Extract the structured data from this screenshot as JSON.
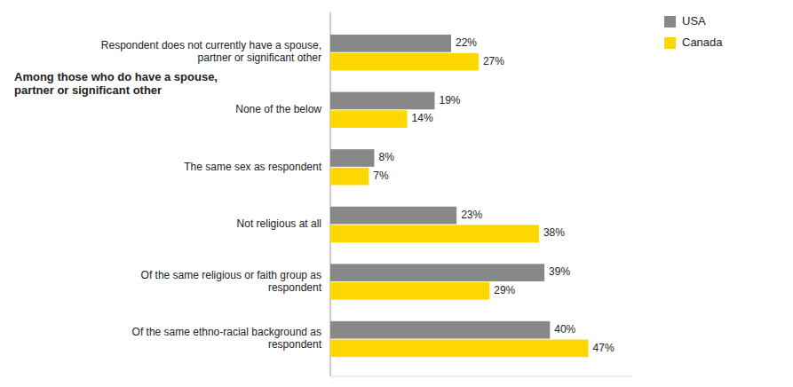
{
  "chart_data": {
    "type": "bar",
    "orientation": "horizontal",
    "categories": [
      "Of the same ethno-racial background as\nrespondent",
      "Of the same religious or faith group as\nrespondent",
      "Not religious at all",
      "The same sex as respondent",
      "None of the below",
      "Respondent does not currently have a spouse,\npartner or significant other"
    ],
    "series": [
      {
        "name": "USA",
        "color": "#888888",
        "values": [
          40,
          39,
          23,
          8,
          19,
          22
        ],
        "value_labels": [
          "40%",
          "39%",
          "23%",
          "8%",
          "19%",
          "22%"
        ]
      },
      {
        "name": "Canada",
        "color": "#FFD700",
        "values": [
          47,
          29,
          38,
          7,
          14,
          27
        ],
        "value_labels": [
          "47%",
          "29%",
          "38%",
          "7%",
          "14%",
          "27%"
        ]
      }
    ],
    "xlim": [
      0,
      55
    ],
    "data_labels": true,
    "tick_labels": "y",
    "legend": "upper right",
    "annotations": [
      "Among those who do have a spouse,\npartner or significant other"
    ]
  }
}
